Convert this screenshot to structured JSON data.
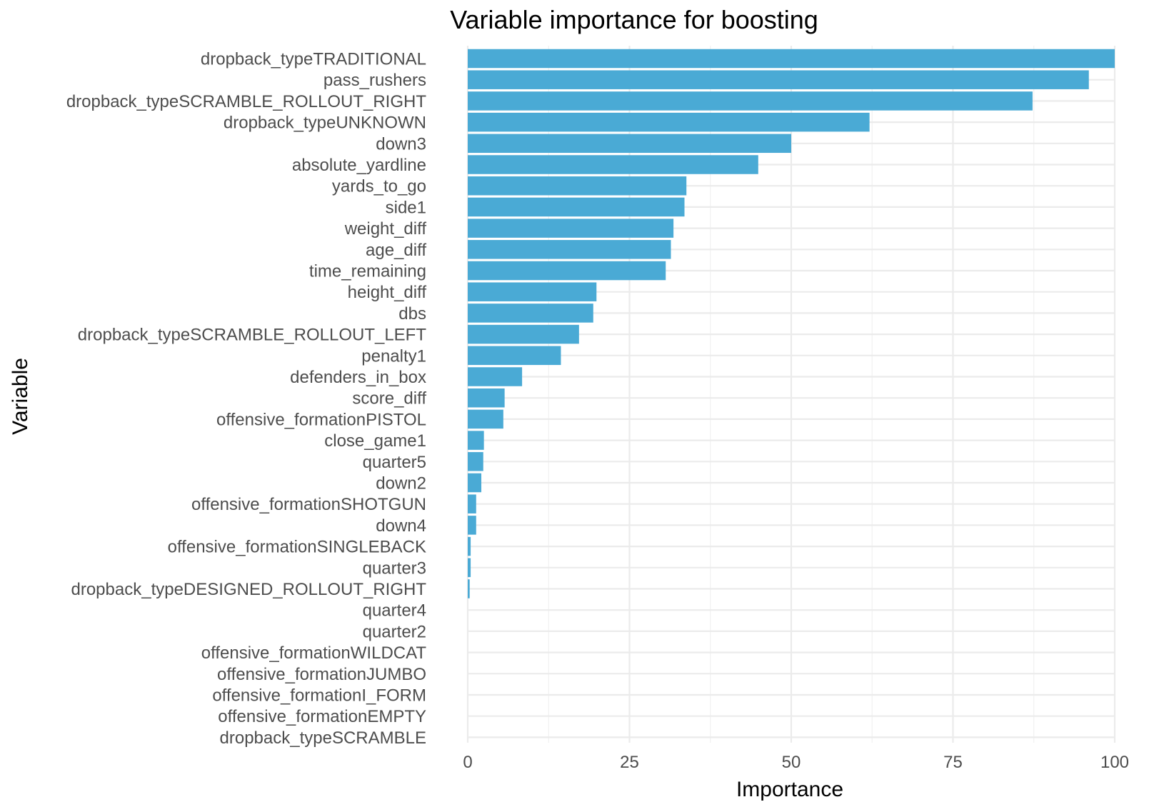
{
  "chart_data": {
    "type": "bar",
    "orientation": "horizontal",
    "title": "Variable importance for boosting",
    "xlabel": "Importance",
    "ylabel": "Variable",
    "xlim": [
      0,
      100
    ],
    "x_ticks": [
      0,
      25,
      50,
      75,
      100
    ],
    "grid": true,
    "bar_color": "#4aaad5",
    "categories": [
      "dropback_typeTRADITIONAL",
      "pass_rushers",
      "dropback_typeSCRAMBLE_ROLLOUT_RIGHT",
      "dropback_typeUNKNOWN",
      "down3",
      "absolute_yardline",
      "yards_to_go",
      "side1",
      "weight_diff",
      "age_diff",
      "time_remaining",
      "height_diff",
      "dbs",
      "dropback_typeSCRAMBLE_ROLLOUT_LEFT",
      "penalty1",
      "defenders_in_box",
      "score_diff",
      "offensive_formationPISTOL",
      "close_game1",
      "quarter5",
      "down2",
      "offensive_formationSHOTGUN",
      "down4",
      "offensive_formationSINGLEBACK",
      "quarter3",
      "dropback_typeDESIGNED_ROLLOUT_RIGHT",
      "quarter4",
      "quarter2",
      "offensive_formationWILDCAT",
      "offensive_formationJUMBO",
      "offensive_formationI_FORM",
      "offensive_formationEMPTY",
      "dropback_typeSCRAMBLE"
    ],
    "values": [
      100,
      96,
      87.3,
      62.1,
      50,
      44.9,
      33.8,
      33.5,
      31.8,
      31.4,
      30.6,
      19.9,
      19.4,
      17.2,
      14.4,
      8.4,
      5.7,
      5.5,
      2.5,
      2.4,
      2.1,
      1.3,
      1.3,
      0.45,
      0.45,
      0.3,
      0,
      0,
      0,
      0,
      0,
      0,
      0
    ]
  }
}
